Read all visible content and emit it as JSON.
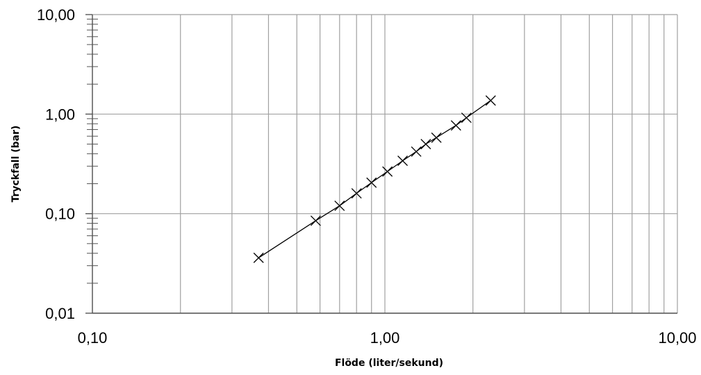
{
  "chart_data": {
    "type": "scatter",
    "title": "",
    "xlabel": "Flöde (liter/sekund)",
    "ylabel": "Tryckfall (bar)",
    "xscale": "log",
    "yscale": "log",
    "xlim": [
      0.1,
      10
    ],
    "ylim": [
      0.01,
      10
    ],
    "x_tick_values": [
      0.1,
      1,
      10
    ],
    "x_tick_labels": [
      "0,10",
      "1,00",
      "10,00"
    ],
    "y_tick_values": [
      10,
      1,
      0.1,
      0.01
    ],
    "y_tick_labels": [
      "10,00",
      "1,00",
      "0,10",
      "0,01"
    ],
    "grid": true,
    "legend": "none",
    "series": [
      {
        "style": "line with x markers",
        "color": "#000000",
        "x": [
          0.37,
          0.58,
          0.7,
          0.8,
          0.9,
          1.02,
          1.15,
          1.28,
          1.38,
          1.5,
          1.75,
          1.9,
          2.3
        ],
        "y": [
          0.036,
          0.085,
          0.12,
          0.16,
          0.205,
          0.265,
          0.34,
          0.42,
          0.5,
          0.58,
          0.77,
          0.92,
          1.37
        ]
      }
    ]
  }
}
